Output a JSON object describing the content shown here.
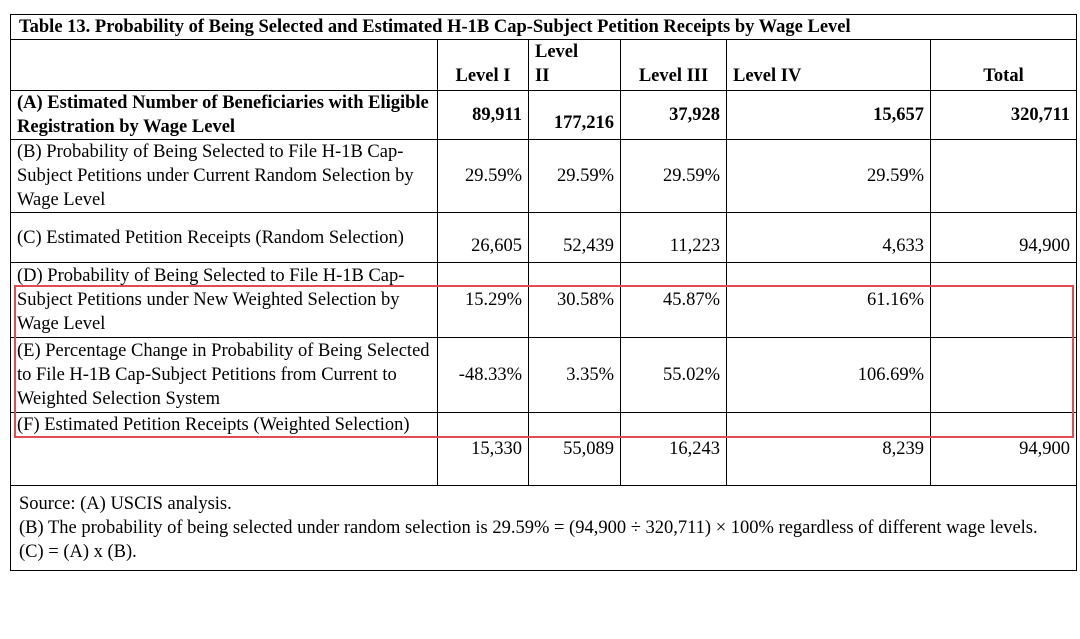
{
  "table": {
    "title": "Table 13. Probability of Being Selected and Estimated H-1B Cap-Subject Petition Receipts by Wage Level",
    "columns": [
      "Level I",
      "Level II",
      "Level III",
      "Level IV",
      "Total"
    ],
    "rows": [
      {
        "label": "(A) Estimated Number of Beneficiaries with Eligible Registration by Wage Level",
        "values": [
          "89,911",
          "177,216",
          "37,928",
          "15,657",
          "320,711"
        ]
      },
      {
        "label": "(B) Probability of Being Selected to File H-1B Cap-Subject Petitions under Current Random Selection by Wage Level",
        "values": [
          "29.59%",
          "29.59%",
          "29.59%",
          "29.59%",
          ""
        ]
      },
      {
        "label": "(C) Estimated Petition Receipts (Random Selection)",
        "values": [
          "26,605",
          "52,439",
          "11,223",
          "4,633",
          "94,900"
        ]
      },
      {
        "label": "(D) Probability of Being Selected to File H-1B Cap-Subject Petitions under New Weighted Selection by Wage Level",
        "values": [
          "15.29%",
          "30.58%",
          "45.87%",
          "61.16%",
          ""
        ]
      },
      {
        "label": "(E) Percentage Change in Probability of Being Selected to File H-1B Cap-Subject Petitions from Current to Weighted Selection System",
        "values": [
          "-48.33%",
          "3.35%",
          "55.02%",
          "106.69%",
          ""
        ]
      },
      {
        "label": "(F) Estimated Petition Receipts (Weighted Selection)",
        "values": [
          "15,330",
          "55,089",
          "16,243",
          "8,239",
          "94,900"
        ]
      }
    ],
    "source": [
      "Source: (A) USCIS analysis.",
      "(B) The probability of being selected under random selection is 29.59% = (94,900 ÷ 320,711) × 100% regardless of different wage levels.",
      "(C) = (A) x (B)."
    ]
  },
  "colors": {
    "highlight": "#e24b54",
    "border": "#000000"
  }
}
